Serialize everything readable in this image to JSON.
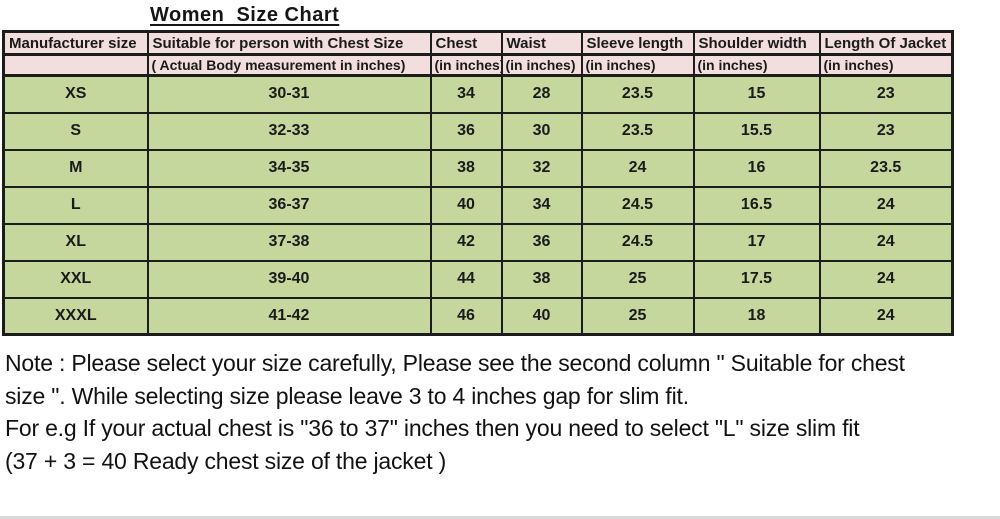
{
  "title": "Women  Size Chart",
  "table": {
    "header_row1": [
      "Manufacturer size",
      "Suitable for person with Chest Size",
      "Chest",
      "Waist",
      "Sleeve length",
      "Shoulder width",
      "Length Of Jacket"
    ],
    "header_row2": [
      "",
      "( Actual Body measurement in inches)",
      "(in inches)",
      "(in inches)",
      "(in inches)",
      "(in inches)",
      "(in inches)"
    ],
    "rows": [
      [
        "XS",
        "30-31",
        "34",
        "28",
        "23.5",
        "15",
        "23"
      ],
      [
        "S",
        "32-33",
        "36",
        "30",
        "23.5",
        "15.5",
        "23"
      ],
      [
        "M",
        "34-35",
        "38",
        "32",
        "24",
        "16",
        "23.5"
      ],
      [
        "L",
        "36-37",
        "40",
        "34",
        "24.5",
        "16.5",
        "24"
      ],
      [
        "XL",
        "37-38",
        "42",
        "36",
        "24.5",
        "17",
        "24"
      ],
      [
        "XXL",
        "39-40",
        "44",
        "38",
        "25",
        "17.5",
        "24"
      ],
      [
        "XXXL",
        "41-42",
        "46",
        "40",
        "25",
        "18",
        "24"
      ]
    ]
  },
  "chart_data": {
    "type": "table",
    "title": "Women  Size Chart",
    "columns": [
      "Manufacturer size",
      "Suitable for person with Chest Size ( Actual Body measurement in inches)",
      "Chest (in inches)",
      "Waist (in inches)",
      "Sleeve length (in inches)",
      "Shoulder width (in inches)",
      "Length Of Jacket (in inches)"
    ],
    "rows": [
      [
        "XS",
        "30-31",
        34,
        28,
        23.5,
        15,
        23
      ],
      [
        "S",
        "32-33",
        36,
        30,
        23.5,
        15.5,
        23
      ],
      [
        "M",
        "34-35",
        38,
        32,
        24,
        16,
        23.5
      ],
      [
        "L",
        "36-37",
        40,
        34,
        24.5,
        16.5,
        24
      ],
      [
        "XL",
        "37-38",
        42,
        36,
        24.5,
        17,
        24
      ],
      [
        "XXL",
        "39-40",
        44,
        38,
        25,
        17.5,
        24
      ],
      [
        "XXXL",
        "41-42",
        46,
        40,
        25,
        18,
        24
      ]
    ]
  },
  "note": {
    "line1": "Note : Please select your size carefully, Please see the second column \" Suitable for chest",
    "line2": "size \". While selecting size please leave 3 to 4 inches gap for slim fit.",
    "line3": "For e.g If your actual chest is \"36 to 37\" inches then you need to select \"L\" size slim fit",
    "line4": "(37 + 3 = 40 Ready chest size of the jacket )"
  },
  "colors": {
    "header_bg": "#f2dedd",
    "row_bg": "#c5d79d",
    "border": "#1c1c1c",
    "text": "#1a1a1a"
  }
}
